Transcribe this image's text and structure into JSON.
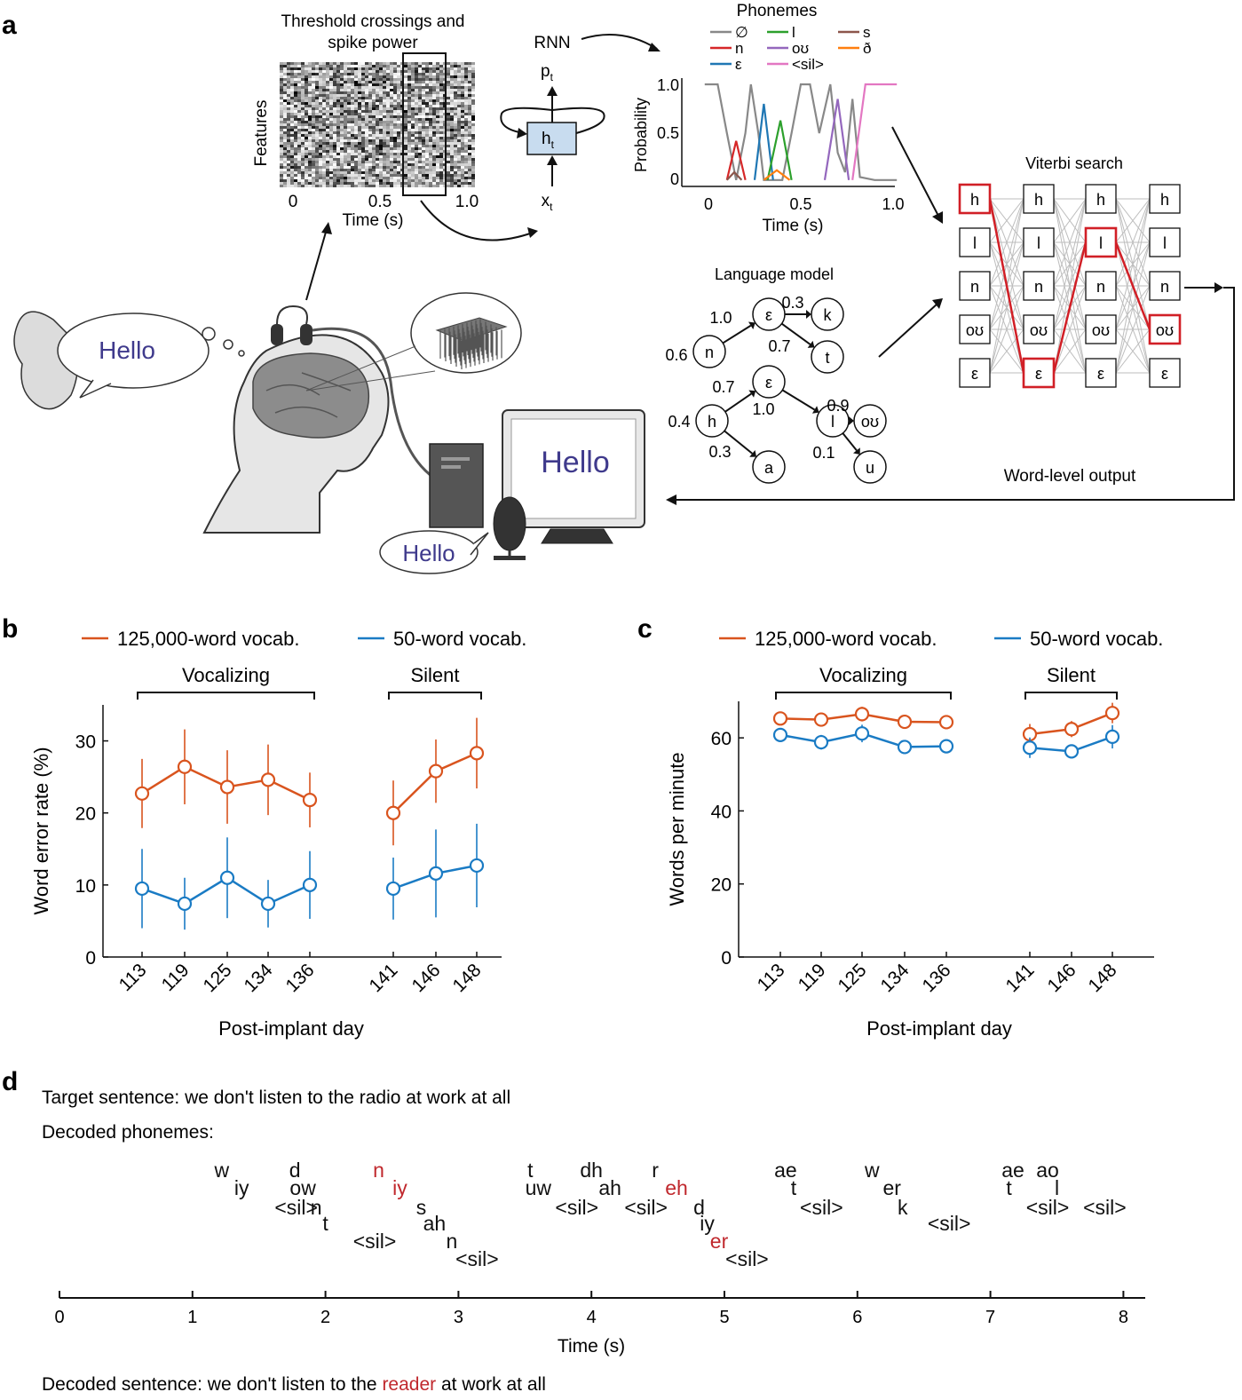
{
  "panels": {
    "a": "a",
    "b": "b",
    "c": "c",
    "d": "d"
  },
  "panel_a": {
    "raster": {
      "title_line1": "Threshold crossings and",
      "title_line2": "spike power",
      "ylabel": "Features",
      "xlabel": "Time (s)",
      "xticks": [
        "0",
        "0.5",
        "1.0"
      ]
    },
    "rnn": {
      "label": "RNN",
      "output": "p",
      "output_sub": "t",
      "hidden": "h",
      "hidden_sub": "t",
      "input": "x",
      "input_sub": "t"
    },
    "phonemes": {
      "title": "Phonemes",
      "legend": [
        {
          "label": "∅",
          "color": "#888888"
        },
        {
          "label": "n",
          "color": "#d62728"
        },
        {
          "label": "ε",
          "color": "#1f77b4"
        },
        {
          "label": "l",
          "color": "#2ca02c"
        },
        {
          "label": "oʊ",
          "color": "#9467bd"
        },
        {
          "label": "<sil>",
          "color": "#e377c2"
        },
        {
          "label": "s",
          "color": "#8c564b"
        },
        {
          "label": "ð",
          "color": "#ff7f0e"
        }
      ],
      "ylabel": "Probability",
      "xlabel": "Time (s)",
      "yticks": [
        "0",
        "0.5",
        "1.0"
      ],
      "xticks": [
        "0",
        "0.5",
        "1.0"
      ]
    },
    "viterbi": {
      "title": "Viterbi search",
      "rows": [
        "h",
        "l",
        "n",
        "oʊ",
        "ε"
      ],
      "path_rows": [
        0,
        4,
        1,
        3
      ]
    },
    "language_model": {
      "title": "Language model",
      "nodes": [
        "n",
        "ε",
        "k",
        "t",
        "h",
        "ε",
        "l",
        "oʊ",
        "a",
        "u"
      ],
      "edge_labels": [
        "0.6",
        "1.0",
        "0.3",
        "0.7",
        "0.4",
        "0.7",
        "1.0",
        "0.9",
        "0.3",
        "0.1"
      ]
    },
    "word_output": "Word-level output",
    "thought_text": "Hello",
    "screen_text": "Hello",
    "speech_text": "Hello"
  },
  "legend_common": {
    "series_red": "125,000-word vocab.",
    "series_blue": "50-word vocab.",
    "color_red": "#d9541e",
    "color_blue": "#1a7bc4"
  },
  "groups": {
    "vocalizing": "Vocalizing",
    "silent": "Silent"
  },
  "chart_data": [
    {
      "panel": "b",
      "type": "line",
      "categories": [
        "113",
        "119",
        "125",
        "134",
        "136",
        "141",
        "146",
        "148"
      ],
      "xlabel": "Post-implant day",
      "ylabel": "Word error rate (%)",
      "ylim": [
        0,
        35
      ],
      "yticks": [
        "0",
        "10",
        "20",
        "30"
      ],
      "series": [
        {
          "name": "125,000-word vocab.",
          "values": [
            22.7,
            26.4,
            23.6,
            24.6,
            21.8,
            20.0,
            25.8,
            28.3
          ],
          "err": [
            4.8,
            5.2,
            5.1,
            4.9,
            3.8,
            4.5,
            4.4,
            4.9
          ]
        },
        {
          "name": "50-word vocab.",
          "values": [
            9.5,
            7.4,
            11.0,
            7.4,
            10.0,
            9.5,
            11.6,
            12.7
          ],
          "err": [
            5.5,
            3.6,
            5.6,
            3.3,
            4.7,
            4.3,
            6.1,
            5.8
          ]
        }
      ]
    },
    {
      "panel": "c",
      "type": "line",
      "categories": [
        "113",
        "119",
        "125",
        "134",
        "136",
        "141",
        "146",
        "148"
      ],
      "xlabel": "Post-implant day",
      "ylabel": "Words per minute",
      "ylim": [
        0,
        70
      ],
      "yticks": [
        "0",
        "20",
        "40",
        "60"
      ],
      "series": [
        {
          "name": "125,000-word vocab.",
          "values": [
            65.3,
            65.0,
            66.5,
            64.4,
            64.3,
            61.0,
            62.4,
            66.8
          ],
          "err": [
            1.5,
            1.5,
            2.0,
            1.8,
            1.6,
            2.8,
            2.2,
            2.8
          ]
        },
        {
          "name": "50-word vocab.",
          "values": [
            60.8,
            58.8,
            61.2,
            57.5,
            57.7,
            57.3,
            56.3,
            60.3
          ],
          "err": [
            1.7,
            2.0,
            2.4,
            1.7,
            1.9,
            2.8,
            1.9,
            3.2
          ]
        }
      ]
    }
  ],
  "panel_d": {
    "target_label": "Target sentence: we don't listen to the radio at work at all",
    "decoded_phonemes_label": "Decoded phonemes:",
    "phonemes": [
      {
        "t": "w",
        "x": 1.22,
        "y": 1,
        "err": false
      },
      {
        "t": "iy",
        "x": 1.37,
        "y": 2,
        "err": false
      },
      {
        "t": "<sil>",
        "x": 1.78,
        "y": 3,
        "err": false
      },
      {
        "t": "d",
        "x": 1.77,
        "y": 1,
        "err": false
      },
      {
        "t": "ow",
        "x": 1.83,
        "y": 2,
        "err": false
      },
      {
        "t": "n",
        "x": 1.93,
        "y": 3,
        "err": false
      },
      {
        "t": "t",
        "x": 2.0,
        "y": 4,
        "err": false
      },
      {
        "t": "n",
        "x": 2.4,
        "y": 1,
        "err": true
      },
      {
        "t": "<sil>",
        "x": 2.37,
        "y": 5,
        "err": false
      },
      {
        "t": "iy",
        "x": 2.56,
        "y": 2,
        "err": true
      },
      {
        "t": "s",
        "x": 2.72,
        "y": 3,
        "err": false
      },
      {
        "t": "ah",
        "x": 2.82,
        "y": 4,
        "err": false
      },
      {
        "t": "n",
        "x": 2.95,
        "y": 5,
        "err": false
      },
      {
        "t": "<sil>",
        "x": 3.14,
        "y": 6,
        "err": false
      },
      {
        "t": "t",
        "x": 3.54,
        "y": 1,
        "err": false
      },
      {
        "t": "uw",
        "x": 3.6,
        "y": 2,
        "err": false
      },
      {
        "t": "<sil>",
        "x": 3.89,
        "y": 3,
        "err": false
      },
      {
        "t": "dh",
        "x": 4.0,
        "y": 1,
        "err": false
      },
      {
        "t": "ah",
        "x": 4.14,
        "y": 2,
        "err": false
      },
      {
        "t": "<sil>",
        "x": 4.41,
        "y": 3,
        "err": false
      },
      {
        "t": "r",
        "x": 4.48,
        "y": 1,
        "err": false
      },
      {
        "t": "eh",
        "x": 4.64,
        "y": 2,
        "err": true
      },
      {
        "t": "d",
        "x": 4.81,
        "y": 3,
        "err": false
      },
      {
        "t": "iy",
        "x": 4.87,
        "y": 4,
        "err": false
      },
      {
        "t": "er",
        "x": 4.96,
        "y": 5,
        "err": true
      },
      {
        "t": "<sil>",
        "x": 5.17,
        "y": 6,
        "err": false
      },
      {
        "t": "ae",
        "x": 5.46,
        "y": 1,
        "err": false
      },
      {
        "t": "t",
        "x": 5.52,
        "y": 2,
        "err": false
      },
      {
        "t": "<sil>",
        "x": 5.73,
        "y": 3,
        "err": false
      },
      {
        "t": "w",
        "x": 6.11,
        "y": 1,
        "err": false
      },
      {
        "t": "er",
        "x": 6.26,
        "y": 2,
        "err": false
      },
      {
        "t": "k",
        "x": 6.34,
        "y": 3,
        "err": false
      },
      {
        "t": "<sil>",
        "x": 6.69,
        "y": 4,
        "err": false
      },
      {
        "t": "ae",
        "x": 7.17,
        "y": 1,
        "err": false
      },
      {
        "t": "t",
        "x": 7.14,
        "y": 2,
        "err": false
      },
      {
        "t": "<sil>",
        "x": 7.43,
        "y": 3,
        "err": false
      },
      {
        "t": "ao",
        "x": 7.43,
        "y": 1,
        "err": false
      },
      {
        "t": "l",
        "x": 7.5,
        "y": 2,
        "err": false
      },
      {
        "t": "<sil>",
        "x": 7.86,
        "y": 3,
        "err": false
      }
    ],
    "axis_ticks": [
      "0",
      "1",
      "2",
      "3",
      "4",
      "5",
      "6",
      "7",
      "8"
    ],
    "xlabel": "Time (s)",
    "decoded_prefix": "Decoded sentence: we don't listen to the ",
    "decoded_error": "reader",
    "decoded_suffix": " at work at all",
    "error_color": "#c0282d"
  }
}
